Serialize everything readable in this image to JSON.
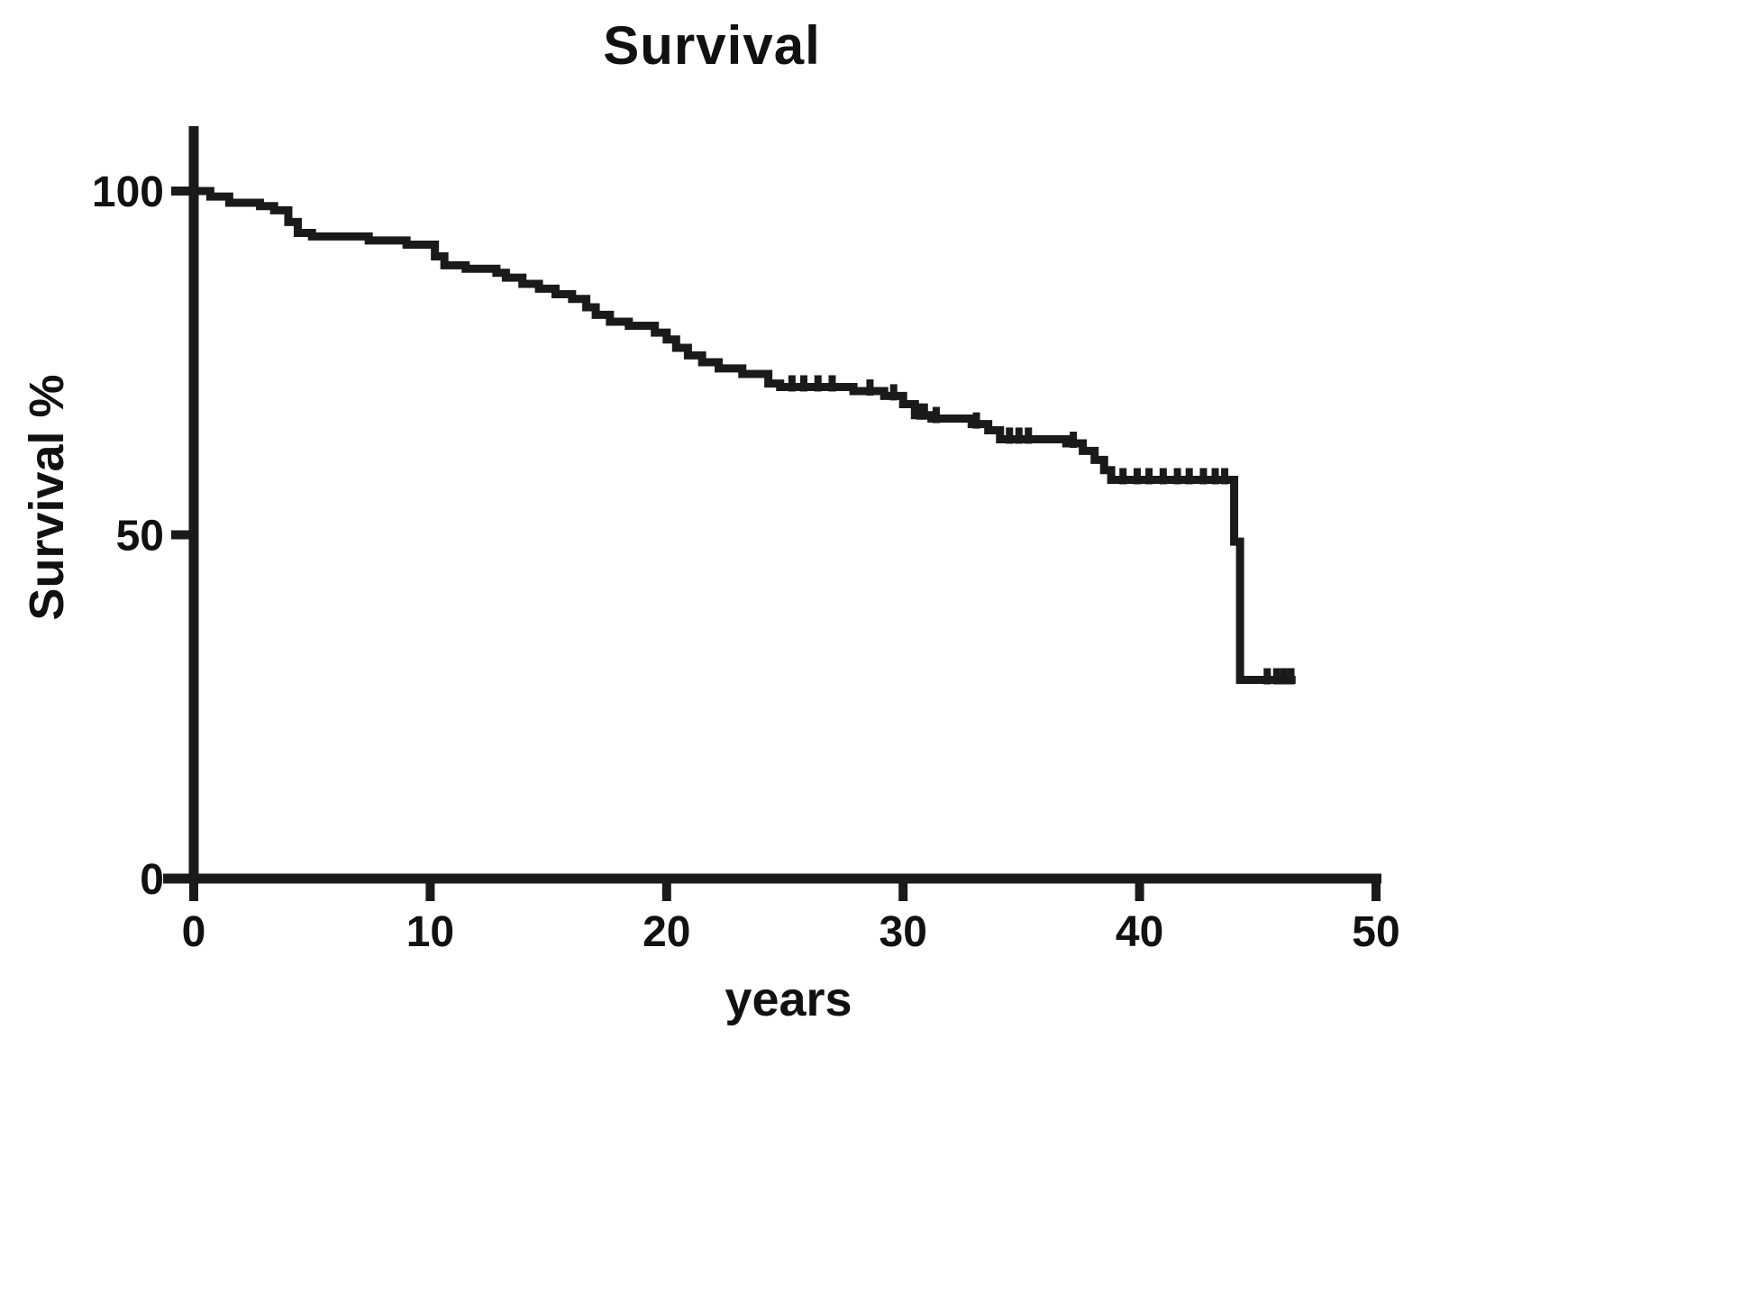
{
  "colors": {
    "line": "#1a1a1a",
    "axis": "#1a1a1a",
    "background": "#ffffff"
  },
  "chart_data": {
    "type": "line",
    "subtype": "kaplan-meier-step",
    "title": "Survival",
    "xlabel": "years",
    "ylabel": "Survival %",
    "xlim": [
      0,
      50
    ],
    "ylim": [
      0,
      100
    ],
    "x_ticks": [
      0,
      10,
      20,
      30,
      40,
      50
    ],
    "y_ticks": [
      0,
      50,
      100
    ],
    "grid": false,
    "legend": "none",
    "series": [
      {
        "name": "Survival",
        "step_points": [
          [
            0,
            100
          ],
          [
            0.7,
            99.2
          ],
          [
            1.5,
            98.3
          ],
          [
            2.8,
            97.8
          ],
          [
            3.4,
            97.2
          ],
          [
            4.0,
            95.5
          ],
          [
            4.4,
            93.9
          ],
          [
            5.0,
            93.4
          ],
          [
            7.4,
            92.8
          ],
          [
            9.0,
            92.2
          ],
          [
            10.2,
            90.5
          ],
          [
            10.6,
            89.2
          ],
          [
            11.5,
            88.7
          ],
          [
            12.8,
            88.1
          ],
          [
            13.2,
            87.4
          ],
          [
            13.9,
            86.5
          ],
          [
            14.6,
            85.8
          ],
          [
            15.3,
            85.0
          ],
          [
            16.0,
            84.3
          ],
          [
            16.6,
            83.1
          ],
          [
            17.0,
            82.0
          ],
          [
            17.6,
            81.0
          ],
          [
            18.4,
            80.4
          ],
          [
            19.5,
            79.4
          ],
          [
            20.0,
            78.4
          ],
          [
            20.4,
            77.2
          ],
          [
            20.9,
            76.1
          ],
          [
            21.5,
            75.1
          ],
          [
            22.2,
            74.2
          ],
          [
            23.2,
            73.4
          ],
          [
            24.3,
            72.0
          ],
          [
            24.8,
            71.5
          ],
          [
            27.9,
            70.9
          ],
          [
            29.2,
            70.2
          ],
          [
            30.0,
            69.0
          ],
          [
            30.5,
            67.4
          ],
          [
            31.2,
            66.9
          ],
          [
            32.9,
            66.1
          ],
          [
            33.6,
            65.2
          ],
          [
            34.1,
            63.9
          ],
          [
            36.9,
            63.3
          ],
          [
            37.6,
            62.2
          ],
          [
            38.1,
            60.9
          ],
          [
            38.5,
            59.4
          ],
          [
            38.8,
            58.0
          ],
          [
            44.0,
            49.0
          ],
          [
            44.25,
            28.9
          ],
          [
            46.6,
            28.9
          ]
        ],
        "censor_marks": [
          [
            25.3,
            71.5
          ],
          [
            25.8,
            71.5
          ],
          [
            26.4,
            71.5
          ],
          [
            27.0,
            71.5
          ],
          [
            28.6,
            70.9
          ],
          [
            29.6,
            70.2
          ],
          [
            30.7,
            67.4
          ],
          [
            30.9,
            67.4
          ],
          [
            31.4,
            66.9
          ],
          [
            33.1,
            66.1
          ],
          [
            34.5,
            63.9
          ],
          [
            34.9,
            63.9
          ],
          [
            35.3,
            63.9
          ],
          [
            37.2,
            63.3
          ],
          [
            39.3,
            58.0
          ],
          [
            39.9,
            58.0
          ],
          [
            40.4,
            58.0
          ],
          [
            41.0,
            58.0
          ],
          [
            41.6,
            58.0
          ],
          [
            42.1,
            58.0
          ],
          [
            42.7,
            58.0
          ],
          [
            43.2,
            58.0
          ],
          [
            43.6,
            58.0
          ],
          [
            45.4,
            28.9
          ],
          [
            45.8,
            28.9
          ],
          [
            46.1,
            28.9
          ],
          [
            46.4,
            28.9
          ]
        ]
      }
    ]
  }
}
